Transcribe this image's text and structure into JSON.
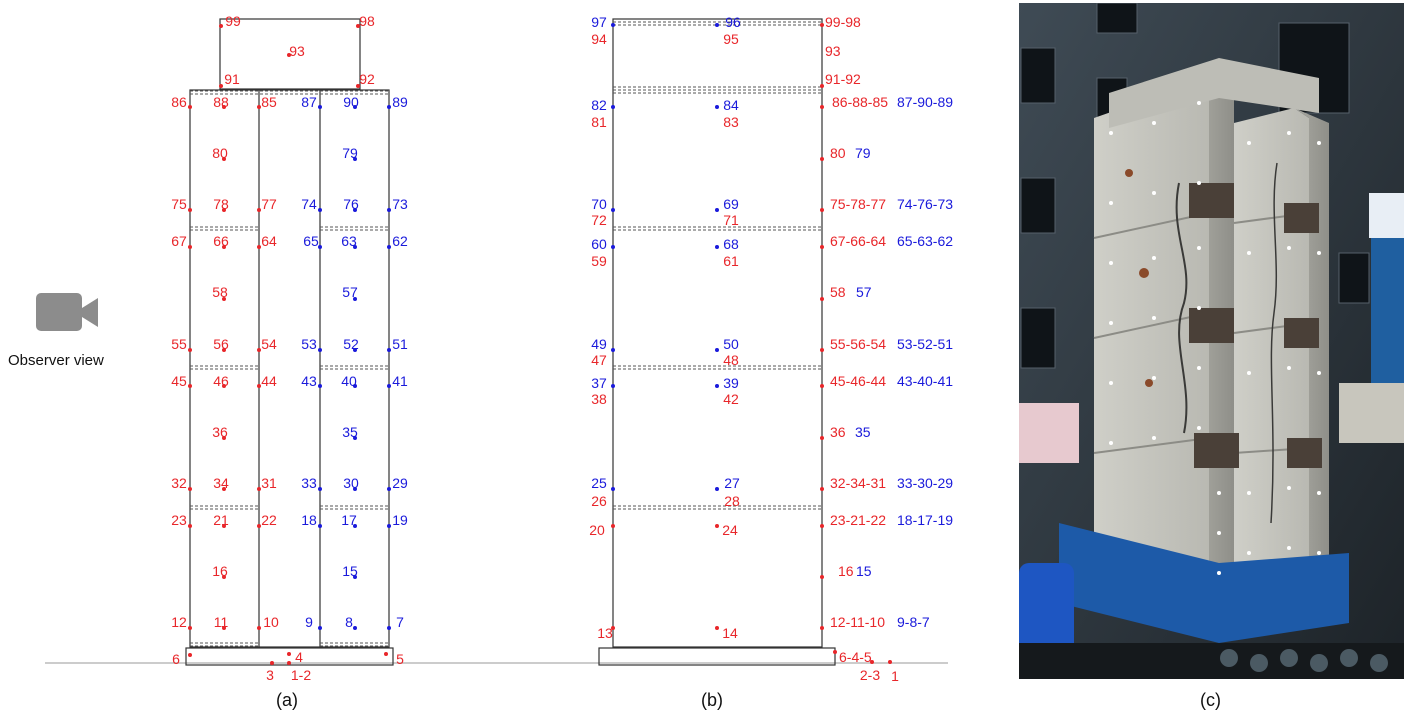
{
  "observer_label": "Observer view",
  "panel_labels": [
    "(a)",
    "(b)",
    "(c)"
  ],
  "colors": {
    "red": "#e8262a",
    "blue": "#1a1adb",
    "frame": "#333333",
    "ground": "#bbbbbb"
  },
  "icons": {
    "observer": "video-camera-icon"
  },
  "panel_a_labels": [
    {
      "t": "99",
      "c": "r"
    },
    {
      "t": "98",
      "c": "r"
    },
    {
      "t": "93",
      "c": "r"
    },
    {
      "t": "91",
      "c": "r"
    },
    {
      "t": "92",
      "c": "r"
    },
    {
      "t": "86",
      "c": "r"
    },
    {
      "t": "88",
      "c": "r"
    },
    {
      "t": "85",
      "c": "r"
    },
    {
      "t": "87",
      "c": "b"
    },
    {
      "t": "90",
      "c": "b"
    },
    {
      "t": "89",
      "c": "b"
    },
    {
      "t": "80",
      "c": "r"
    },
    {
      "t": "79",
      "c": "b"
    },
    {
      "t": "75",
      "c": "r"
    },
    {
      "t": "78",
      "c": "r"
    },
    {
      "t": "77",
      "c": "r"
    },
    {
      "t": "74",
      "c": "b"
    },
    {
      "t": "76",
      "c": "b"
    },
    {
      "t": "73",
      "c": "b"
    },
    {
      "t": "67",
      "c": "r"
    },
    {
      "t": "66",
      "c": "r"
    },
    {
      "t": "64",
      "c": "r"
    },
    {
      "t": "65",
      "c": "b"
    },
    {
      "t": "63",
      "c": "b"
    },
    {
      "t": "62",
      "c": "b"
    },
    {
      "t": "58",
      "c": "r"
    },
    {
      "t": "57",
      "c": "b"
    },
    {
      "t": "55",
      "c": "r"
    },
    {
      "t": "56",
      "c": "r"
    },
    {
      "t": "54",
      "c": "r"
    },
    {
      "t": "53",
      "c": "b"
    },
    {
      "t": "52",
      "c": "b"
    },
    {
      "t": "51",
      "c": "b"
    },
    {
      "t": "45",
      "c": "r"
    },
    {
      "t": "46",
      "c": "r"
    },
    {
      "t": "44",
      "c": "r"
    },
    {
      "t": "43",
      "c": "b"
    },
    {
      "t": "40",
      "c": "b"
    },
    {
      "t": "41",
      "c": "b"
    },
    {
      "t": "36",
      "c": "r"
    },
    {
      "t": "35",
      "c": "b"
    },
    {
      "t": "32",
      "c": "r"
    },
    {
      "t": "34",
      "c": "r"
    },
    {
      "t": "31",
      "c": "r"
    },
    {
      "t": "33",
      "c": "b"
    },
    {
      "t": "30",
      "c": "b"
    },
    {
      "t": "29",
      "c": "b"
    },
    {
      "t": "23",
      "c": "r"
    },
    {
      "t": "21",
      "c": "r"
    },
    {
      "t": "22",
      "c": "r"
    },
    {
      "t": "18",
      "c": "b"
    },
    {
      "t": "17",
      "c": "b"
    },
    {
      "t": "19",
      "c": "b"
    },
    {
      "t": "16",
      "c": "r"
    },
    {
      "t": "15",
      "c": "b"
    },
    {
      "t": "12",
      "c": "r"
    },
    {
      "t": "11",
      "c": "r"
    },
    {
      "t": "10",
      "c": "r"
    },
    {
      "t": "9",
      "c": "b"
    },
    {
      "t": "8",
      "c": "b"
    },
    {
      "t": "7",
      "c": "b"
    },
    {
      "t": "6",
      "c": "r"
    },
    {
      "t": "4",
      "c": "r"
    },
    {
      "t": "5",
      "c": "r"
    },
    {
      "t": "3",
      "c": "r"
    },
    {
      "t": "1-2",
      "c": "r"
    }
  ],
  "panel_b_labels": [
    {
      "t": "97",
      "c": "b"
    },
    {
      "t": "96",
      "c": "b"
    },
    {
      "t": "99-98",
      "c": "r"
    },
    {
      "t": "94",
      "c": "r"
    },
    {
      "t": "95",
      "c": "r"
    },
    {
      "t": "93",
      "c": "r"
    },
    {
      "t": "91-92",
      "c": "r"
    },
    {
      "t": "82",
      "c": "b"
    },
    {
      "t": "84",
      "c": "b"
    },
    {
      "t": "86-88-85",
      "c": "r"
    },
    {
      "t": "87-90-89",
      "c": "b"
    },
    {
      "t": "81",
      "c": "r"
    },
    {
      "t": "83",
      "c": "r"
    },
    {
      "t": "80",
      "c": "r"
    },
    {
      "t": "79",
      "c": "b"
    },
    {
      "t": "70",
      "c": "b"
    },
    {
      "t": "69",
      "c": "b"
    },
    {
      "t": "75-78-77",
      "c": "r"
    },
    {
      "t": "74-76-73",
      "c": "b"
    },
    {
      "t": "72",
      "c": "r"
    },
    {
      "t": "71",
      "c": "r"
    },
    {
      "t": "60",
      "c": "b"
    },
    {
      "t": "68",
      "c": "b"
    },
    {
      "t": "67-66-64",
      "c": "r"
    },
    {
      "t": "65-63-62",
      "c": "b"
    },
    {
      "t": "59",
      "c": "r"
    },
    {
      "t": "61",
      "c": "r"
    },
    {
      "t": "58",
      "c": "r"
    },
    {
      "t": "57",
      "c": "b"
    },
    {
      "t": "49",
      "c": "b"
    },
    {
      "t": "50",
      "c": "b"
    },
    {
      "t": "55-56-54",
      "c": "r"
    },
    {
      "t": "53-52-51",
      "c": "b"
    },
    {
      "t": "47",
      "c": "r"
    },
    {
      "t": "48",
      "c": "r"
    },
    {
      "t": "37",
      "c": "b"
    },
    {
      "t": "39",
      "c": "b"
    },
    {
      "t": "45-46-44",
      "c": "r"
    },
    {
      "t": "43-40-41",
      "c": "b"
    },
    {
      "t": "38",
      "c": "r"
    },
    {
      "t": "42",
      "c": "r"
    },
    {
      "t": "36",
      "c": "r"
    },
    {
      "t": "35",
      "c": "b"
    },
    {
      "t": "25",
      "c": "b"
    },
    {
      "t": "27",
      "c": "b"
    },
    {
      "t": "32-34-31",
      "c": "r"
    },
    {
      "t": "33-30-29",
      "c": "b"
    },
    {
      "t": "26",
      "c": "r"
    },
    {
      "t": "28",
      "c": "r"
    },
    {
      "t": "20",
      "c": "r"
    },
    {
      "t": "24",
      "c": "r"
    },
    {
      "t": "23-21-22",
      "c": "r"
    },
    {
      "t": "18-17-19",
      "c": "b"
    },
    {
      "t": "16",
      "c": "r"
    },
    {
      "t": "15",
      "c": "b"
    },
    {
      "t": "13",
      "c": "r"
    },
    {
      "t": "14",
      "c": "r"
    },
    {
      "t": "12-11-10",
      "c": "r"
    },
    {
      "t": "9-8-7",
      "c": "b"
    },
    {
      "t": "6-4-5",
      "c": "r"
    },
    {
      "t": "2-3",
      "c": "r"
    },
    {
      "t": "1",
      "c": "r"
    }
  ]
}
